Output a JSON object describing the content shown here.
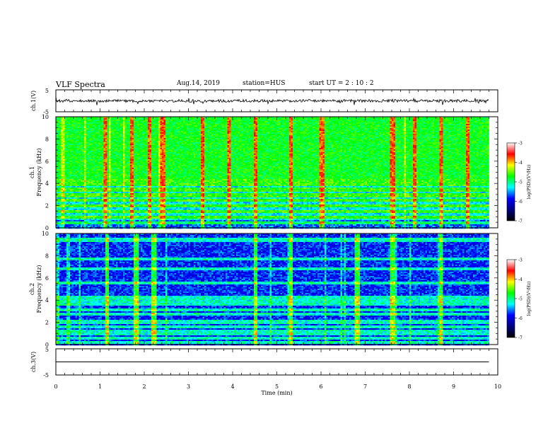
{
  "header": {
    "title": "VLF Spectra",
    "date": "Aug.14, 2019",
    "station": "station=HUS",
    "start": "start  UT =   2 : 10 : 2"
  },
  "colorbar": {
    "label": "log(PSD)(V²/Hz)",
    "ticks": [
      "-3",
      "-4",
      "-5",
      "-6",
      "-7"
    ],
    "colors": [
      "#ffffff",
      "#ff0000",
      "#ffff00",
      "#00ff00",
      "#00ffff",
      "#0000ff",
      "#000080",
      "#000000"
    ]
  },
  "chart_data": [
    {
      "type": "line",
      "name": "ch1-waveform",
      "ylabel": "ch.1(V)",
      "ylim": [
        -5,
        5
      ],
      "yticks": [
        "5",
        "-5"
      ],
      "xlim": [
        0,
        10
      ],
      "baseline": 0,
      "end_x": 9.8,
      "grid": false
    },
    {
      "type": "heatmap",
      "name": "ch1-spectrogram",
      "ylabel": "ch.1\nFrequency (kHz)",
      "ylim": [
        0,
        10
      ],
      "yticks": [
        "0",
        "2",
        "4",
        "6",
        "8",
        "10"
      ],
      "xlim": [
        0,
        10
      ],
      "end_x": 9.8,
      "zlim": [
        -7,
        -3
      ],
      "bright_band_khz": [
        4.5,
        10
      ],
      "line_freqs_khz": [
        0.5,
        1.0,
        1.5,
        2.0,
        2.5,
        3.0,
        3.5,
        4.0,
        4.3
      ],
      "burst_times_min": [
        1.1,
        1.7,
        2.1,
        2.4,
        3.3,
        3.9,
        4.5,
        5.3,
        6.0,
        7.6,
        8.1,
        8.7,
        9.3
      ]
    },
    {
      "type": "heatmap",
      "name": "ch2-spectrogram",
      "ylabel": "ch.2\nFrequency (kHz)",
      "ylim": [
        0,
        10
      ],
      "yticks": [
        "0",
        "2",
        "4",
        "6",
        "8",
        "10"
      ],
      "xlim": [
        0,
        10
      ],
      "end_x": 9.8,
      "zlim": [
        -7,
        -3
      ],
      "line_freqs_khz": [
        0.3,
        0.6,
        1.0,
        1.3,
        1.7,
        2.1,
        2.8,
        3.2,
        3.7,
        4.0,
        4.3,
        5.6,
        6.9,
        7.8,
        9.5
      ],
      "burst_times_min": [
        1.15,
        1.8,
        2.2,
        4.5,
        5.3,
        6.8,
        7.6,
        8.7
      ]
    },
    {
      "type": "line",
      "name": "ch3-waveform",
      "ylabel": "ch.3(V)",
      "ylim": [
        -5,
        5
      ],
      "yticks": [
        "5",
        "-5"
      ],
      "xlim": [
        0,
        10
      ],
      "baseline": 0,
      "end_x": 9.8,
      "xlabel": "Time  (min)",
      "xticks": [
        "0",
        "1",
        "2",
        "3",
        "4",
        "5",
        "6",
        "7",
        "8",
        "9",
        "10"
      ]
    }
  ]
}
